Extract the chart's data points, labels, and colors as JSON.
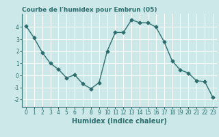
{
  "x": [
    0,
    1,
    2,
    3,
    4,
    5,
    6,
    7,
    8,
    9,
    10,
    11,
    12,
    13,
    14,
    15,
    16,
    17,
    18,
    19,
    20,
    21,
    22,
    23
  ],
  "y": [
    4.1,
    3.1,
    1.9,
    1.0,
    0.5,
    -0.2,
    0.05,
    -0.7,
    -1.1,
    -0.6,
    2.0,
    3.55,
    3.55,
    4.6,
    4.35,
    4.35,
    4.0,
    2.8,
    1.2,
    0.45,
    0.2,
    -0.45,
    -0.5,
    -1.8
  ],
  "title": "Courbe de l'humidex pour Embrun (05)",
  "xlabel": "Humidex (Indice chaleur)",
  "ylabel": "",
  "xlim": [
    -0.5,
    23.5
  ],
  "ylim": [
    -2.6,
    5.1
  ],
  "yticks": [
    -2,
    -1,
    0,
    1,
    2,
    3,
    4
  ],
  "xticks": [
    0,
    1,
    2,
    3,
    4,
    5,
    6,
    7,
    8,
    9,
    10,
    11,
    12,
    13,
    14,
    15,
    16,
    17,
    18,
    19,
    20,
    21,
    22,
    23
  ],
  "line_color": "#2d6e6e",
  "marker": "D",
  "marker_size": 2.5,
  "bg_color": "#cce8e8",
  "grid_color": "#ffffff",
  "title_fontsize": 6.5,
  "xlabel_fontsize": 7,
  "tick_fontsize": 5.5,
  "linewidth": 1.0
}
